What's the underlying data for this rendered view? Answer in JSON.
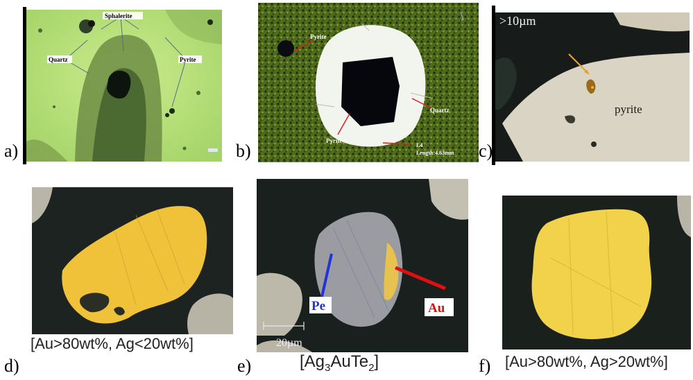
{
  "panels": {
    "a": {
      "letter": "a)",
      "labels": {
        "sphalerite": "Sphalerite",
        "quartz": "Quartz",
        "pyrite": "Pyrite"
      }
    },
    "b": {
      "letter": "b)",
      "labels": {
        "pyrite_top": "Pyrite",
        "pyrite_bottom": "Pyrite",
        "quartz": "Quartz",
        "l4": "L4",
        "length": "Length:4.63mm"
      }
    },
    "c": {
      "letter": "c)",
      "labels": {
        "scale": ">10µm",
        "pyrite": "pyrite"
      }
    },
    "d": {
      "letter": "d)",
      "caption": "[Au>80wt%, Ag<20wt%]"
    },
    "e": {
      "letter": "e)",
      "caption": "[Ag3AuTe2]",
      "caption_parts": {
        "a": "[Ag",
        "sub1": "3",
        "b": "AuTe",
        "sub2": "2",
        "c": "]"
      },
      "labels": {
        "pe": "Pe",
        "au": "Au",
        "scale": "20µm"
      }
    },
    "f": {
      "letter": "f)",
      "caption": "[Au>80wt%, Ag>20wt%]"
    }
  },
  "colors": {
    "pe_blue": "#2234d4",
    "au_red": "#e01010",
    "gold": "#f2c63a",
    "pyrite_gray": "#d4cfbf",
    "matrix_dark": "#1a1f1c"
  }
}
